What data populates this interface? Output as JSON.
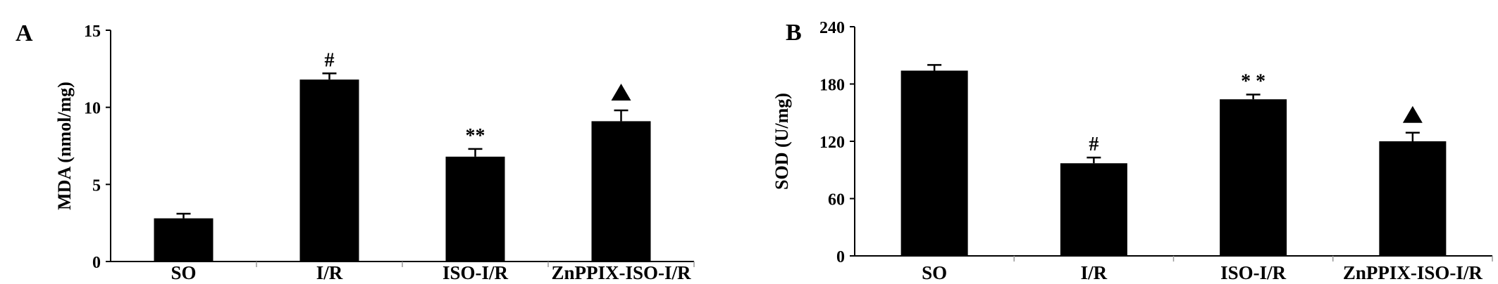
{
  "chart_data": [
    {
      "panel": "A",
      "type": "bar",
      "categories": [
        "SO",
        "I/R",
        "ISO-I/R",
        "ZnPPIX-ISO-I/R"
      ],
      "values": [
        2.8,
        11.8,
        6.8,
        9.1
      ],
      "errors": [
        0.3,
        0.4,
        0.5,
        0.7
      ],
      "annotations": [
        "",
        "#",
        "**",
        "▲"
      ],
      "ylabel": "MDA (nmol/mg)",
      "ylim": [
        0,
        15
      ],
      "yticks": [
        0,
        5,
        10,
        15
      ],
      "bar_color": "#000000",
      "grid": false
    },
    {
      "panel": "B",
      "type": "bar",
      "categories": [
        "SO",
        "I/R",
        "ISO-I/R",
        "ZnPPIX-ISO-I/R"
      ],
      "values": [
        194,
        97,
        164,
        120
      ],
      "errors": [
        6,
        6,
        5,
        9
      ],
      "annotations": [
        "",
        "#",
        "* *",
        "▲"
      ],
      "ylabel": "SOD (U/mg)",
      "ylim": [
        0,
        240
      ],
      "yticks": [
        0,
        60,
        120,
        180,
        240
      ],
      "bar_color": "#000000",
      "grid": false
    }
  ]
}
